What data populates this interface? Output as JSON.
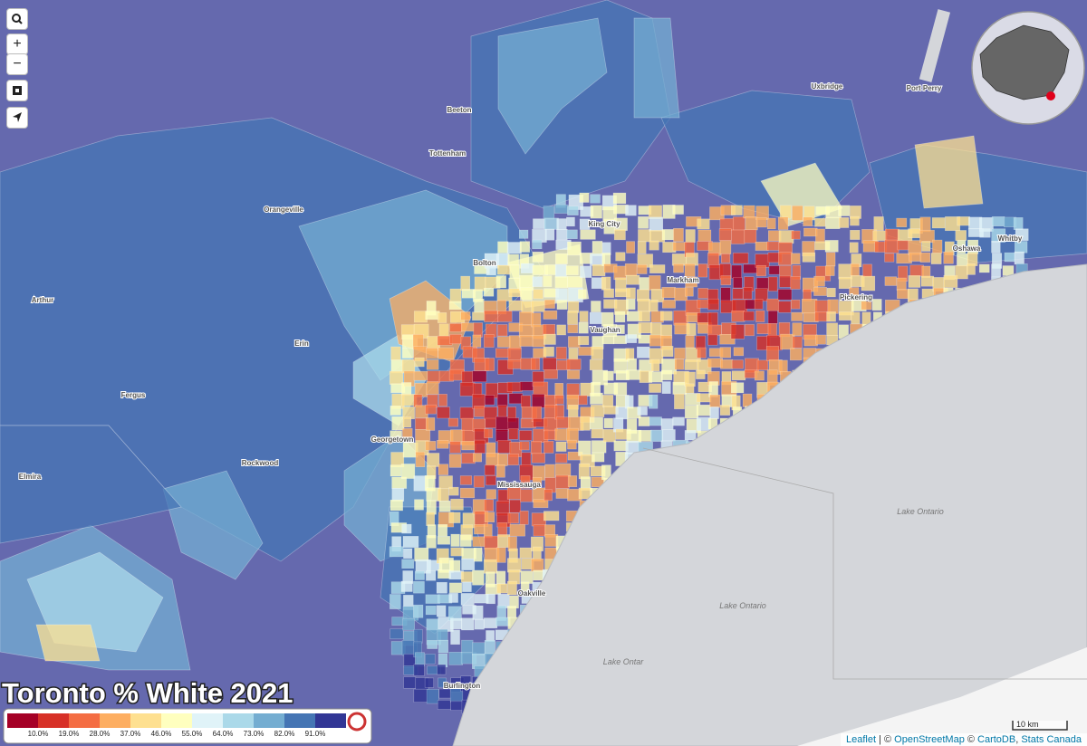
{
  "title": "Toronto % White 2021",
  "legend": {
    "colors": [
      "#a50026",
      "#d73027",
      "#f46d43",
      "#fdae61",
      "#fee090",
      "#ffffbf",
      "#e0f3f8",
      "#abd9e9",
      "#74add1",
      "#4575b4",
      "#313695"
    ],
    "labels": [
      "10.0%",
      "19.0%",
      "28.0%",
      "37.0%",
      "46.0%",
      "55.0%",
      "64.0%",
      "73.0%",
      "82.0%",
      "91.0%"
    ]
  },
  "places": [
    "Beeton",
    "Tottenham",
    "Orangeville",
    "King City",
    "Bolton",
    "Vaughan",
    "Markham",
    "Uxbridge",
    "Port Perry",
    "Oshawa",
    "Whitby",
    "Pickering",
    "Erin",
    "Arthur",
    "Fergus",
    "Rockwood",
    "Georgetown",
    "Mississauga",
    "Oakville",
    "Burlington",
    "Elmira"
  ],
  "water_labels": [
    "Lake Ontario",
    "Lake Ontario",
    "Lake Ontar"
  ],
  "controls": {
    "zoom_in": "+",
    "zoom_out": "−"
  },
  "scale": "10 km",
  "attribution": [
    {
      "text": "Leaflet",
      "link": true
    },
    {
      "text": " | © ",
      "link": false
    },
    {
      "text": "OpenStreetMap",
      "link": true
    },
    {
      "text": " © ",
      "link": false
    },
    {
      "text": "CartoDB",
      "link": true
    },
    {
      "text": ", ",
      "link": false
    },
    {
      "text": "Stats Canada",
      "link": true
    }
  ]
}
